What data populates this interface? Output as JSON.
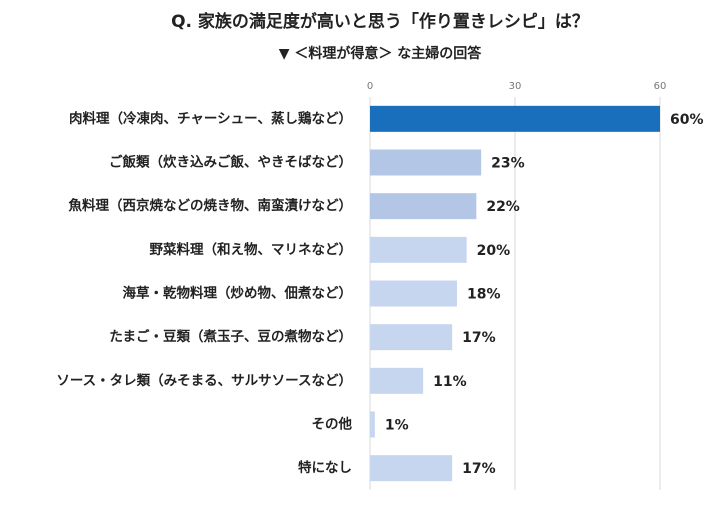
{
  "chart_data": {
    "type": "hbar",
    "title": "Q. 家族の満足度が高いと思う「作り置きレシピ」は？",
    "subtitle": "▼ ＜料理が得意＞ な主婦の回答",
    "categories": [
      "肉料理（冷凍肉、チャーシュー、蒸し鶏など）",
      "ご飯類（炊き込みご飯、やきそばなど）",
      "魚料理（西京焼などの焼き物、南蛮漬けなど）",
      "野菜料理（和え物、マリネなど）",
      "海草・乾物料理（炒め物、佃煮など）",
      "たまご・豆類（煮玉子、豆の煮物など）",
      "ソース・タレ類（みそまる、サルサソースなど）",
      "その他",
      "特になし"
    ],
    "values": [
      60,
      23,
      22,
      20,
      18,
      17,
      11,
      1,
      17
    ],
    "value_labels": [
      "60%",
      "23%",
      "22%",
      "20%",
      "18%",
      "17%",
      "11%",
      "1%",
      "17%"
    ],
    "colors": [
      "#1a6fbd",
      "#b3c6e5",
      "#b3c6e5",
      "#c6d6ef",
      "#c6d6ef",
      "#c6d6ef",
      "#c6d6ef",
      "#c6d6ef",
      "#c6d6ef"
    ],
    "xlim": [
      0,
      60
    ],
    "xticks": [
      0,
      30,
      60
    ],
    "grid": true
  }
}
